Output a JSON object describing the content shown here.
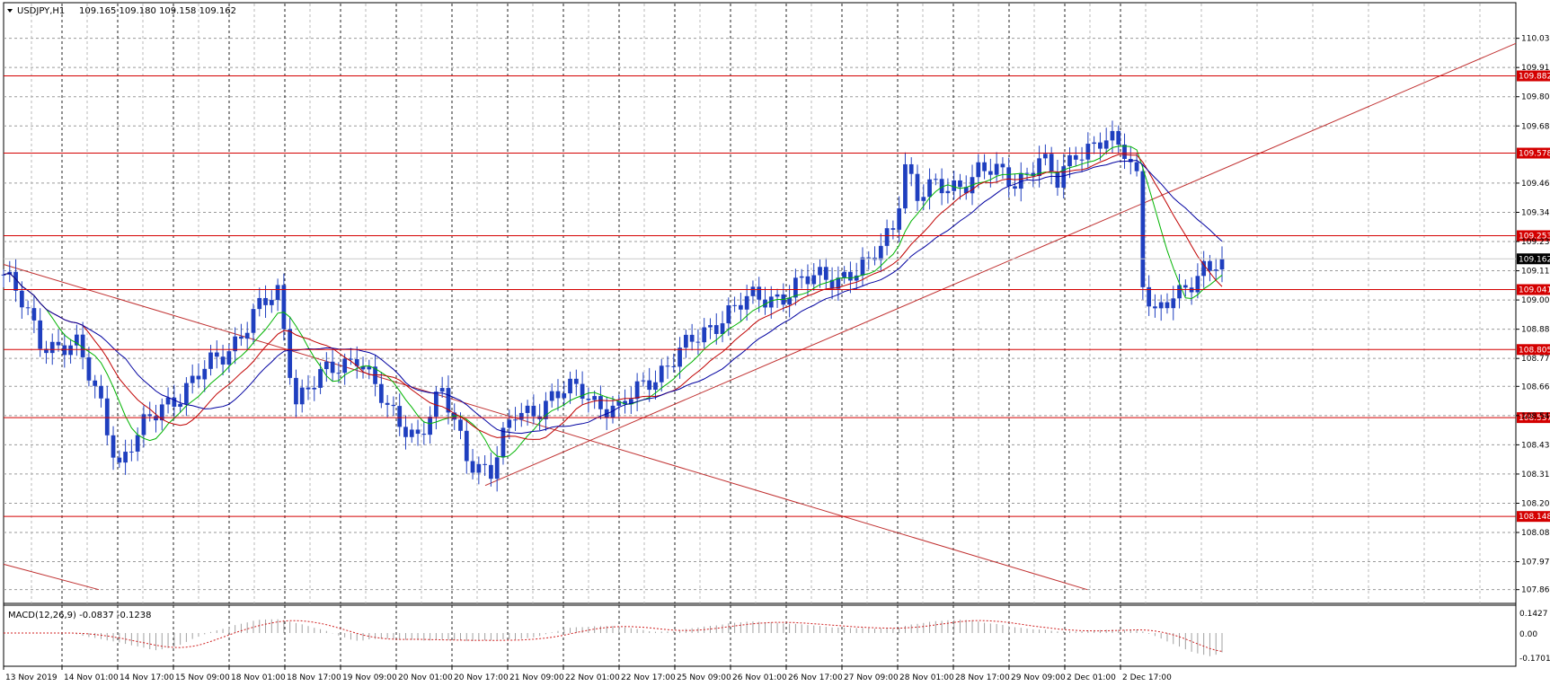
{
  "header": {
    "symbol": "USDJPY,H1",
    "quote": "109.165 109.180 109.158 109.162"
  },
  "macd": {
    "label": "MACD(12,26,9) -0.0837 -0.1238",
    "ticks": [
      "0.1427",
      "0.00",
      "-0.1701"
    ]
  },
  "colors": {
    "candle": "#1f3fbf",
    "ma_fast": "#00b400",
    "ma_mid": "#c00000",
    "ma_slow": "#0000a0",
    "level": "#d40000",
    "trend": "#c03030",
    "macd": "#a0a0a0",
    "signal": "#d02020"
  },
  "chart_data": {
    "type": "line",
    "instrument": "USDJPY",
    "timeframe": "H1",
    "ylim": [
      107.82,
      110.11
    ],
    "y_ticks": [
      "110.030",
      "109.915",
      "109.800",
      "109.685",
      "109.460",
      "109.345",
      "109.230",
      "109.115",
      "109.000",
      "108.885",
      "108.770",
      "108.660",
      "108.545",
      "108.430",
      "108.315",
      "108.200",
      "108.085",
      "107.970",
      "107.860"
    ],
    "x_labels": [
      "13 Nov 2019",
      "14 Nov 01:00",
      "14 Nov 17:00",
      "15 Nov 09:00",
      "18 Nov 01:00",
      "18 Nov 17:00",
      "19 Nov 09:00",
      "20 Nov 01:00",
      "20 Nov 17:00",
      "21 Nov 09:00",
      "22 Nov 01:00",
      "22 Nov 17:00",
      "25 Nov 09:00",
      "26 Nov 01:00",
      "26 Nov 17:00",
      "27 Nov 09:00",
      "28 Nov 01:00",
      "28 Nov 17:00",
      "29 Nov 09:00",
      "2 Dec 01:00",
      "2 Dec 17:00"
    ],
    "levels": [
      "109.882",
      "109.578",
      "109.253",
      "109.041",
      "108.805",
      "108.537",
      "108.148"
    ],
    "last_price": "109.162",
    "close_path": [
      {
        "x": 0,
        "y": 109.1
      },
      {
        "x": 6,
        "y": 108.85
      },
      {
        "x": 12,
        "y": 108.8
      },
      {
        "x": 16,
        "y": 108.6
      },
      {
        "x": 19,
        "y": 108.35
      },
      {
        "x": 22,
        "y": 108.45
      },
      {
        "x": 26,
        "y": 108.6
      },
      {
        "x": 31,
        "y": 108.66
      },
      {
        "x": 36,
        "y": 108.8
      },
      {
        "x": 40,
        "y": 108.9
      },
      {
        "x": 45,
        "y": 109.03
      },
      {
        "x": 48,
        "y": 108.62
      },
      {
        "x": 53,
        "y": 108.7
      },
      {
        "x": 58,
        "y": 108.8
      },
      {
        "x": 63,
        "y": 108.55
      },
      {
        "x": 68,
        "y": 108.48
      },
      {
        "x": 72,
        "y": 108.62
      },
      {
        "x": 76,
        "y": 108.4
      },
      {
        "x": 80,
        "y": 108.32
      },
      {
        "x": 84,
        "y": 108.55
      },
      {
        "x": 89,
        "y": 108.6
      },
      {
        "x": 95,
        "y": 108.65
      },
      {
        "x": 101,
        "y": 108.55
      },
      {
        "x": 106,
        "y": 108.7
      },
      {
        "x": 112,
        "y": 108.8
      },
      {
        "x": 118,
        "y": 108.95
      },
      {
        "x": 124,
        "y": 109.0
      },
      {
        "x": 130,
        "y": 109.05
      },
      {
        "x": 136,
        "y": 109.1
      },
      {
        "x": 142,
        "y": 109.12
      },
      {
        "x": 146,
        "y": 109.3
      },
      {
        "x": 148,
        "y": 109.55
      },
      {
        "x": 150,
        "y": 109.4
      },
      {
        "x": 155,
        "y": 109.45
      },
      {
        "x": 160,
        "y": 109.5
      },
      {
        "x": 166,
        "y": 109.48
      },
      {
        "x": 170,
        "y": 109.55
      },
      {
        "x": 173,
        "y": 109.45
      },
      {
        "x": 176,
        "y": 109.6
      },
      {
        "x": 180,
        "y": 109.62
      },
      {
        "x": 184,
        "y": 109.58
      },
      {
        "x": 186,
        "y": 109.5
      },
      {
        "x": 187,
        "y": 109.1
      },
      {
        "x": 189,
        "y": 108.95
      },
      {
        "x": 193,
        "y": 109.0
      },
      {
        "x": 197,
        "y": 109.15
      },
      {
        "x": 200,
        "y": 109.162
      }
    ]
  }
}
